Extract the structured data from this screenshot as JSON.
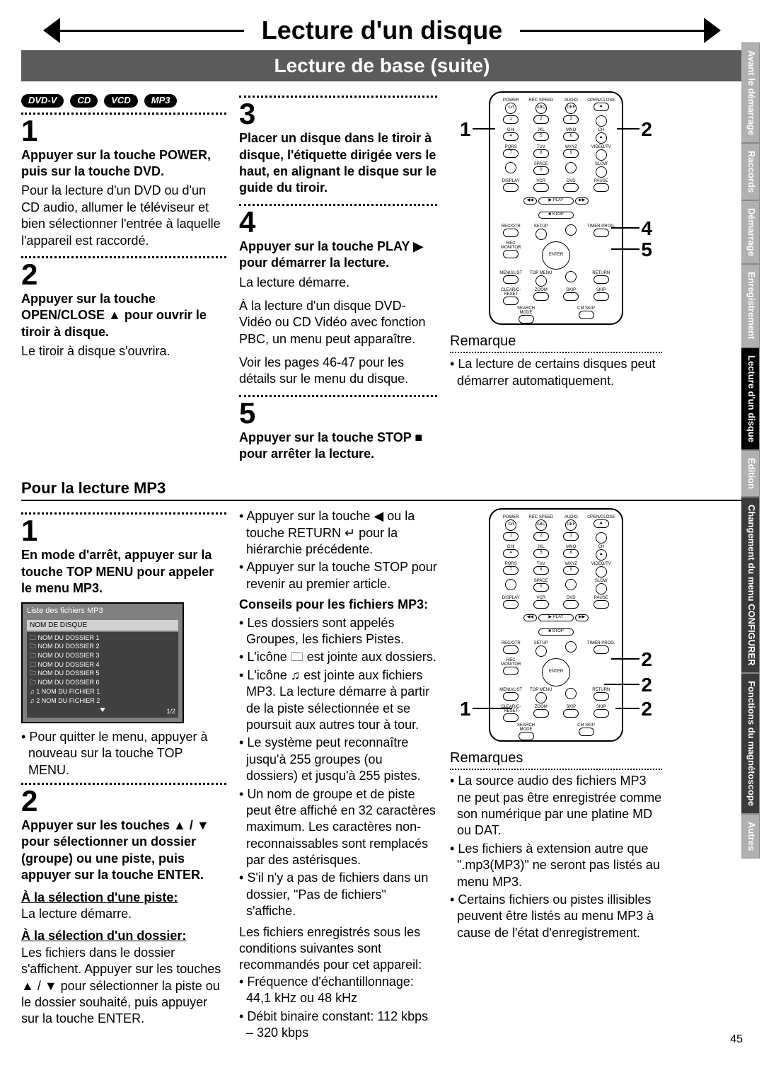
{
  "title": "Lecture d'un disque",
  "subtitle": "Lecture de base (suite)",
  "badges": [
    "DVD-V",
    "CD",
    "VCD",
    "MP3"
  ],
  "top": {
    "s1_head": "Appuyer sur la touche POWER, puis sur la touche DVD.",
    "s1_body": "Pour la lecture d'un DVD ou d'un CD audio, allumer le téléviseur et bien sélectionner l'entrée à laquelle l'appareil est raccordé.",
    "s2_head": "Appuyer sur la touche OPEN/CLOSE ▲ pour ouvrir le tiroir à disque.",
    "s2_body": "Le tiroir à disque s'ouvrira.",
    "s3_head": "Placer un disque dans le tiroir à disque, l'étiquette dirigée vers le haut, en alignant le disque sur le guide du tiroir.",
    "s4_head": "Appuyer sur la touche PLAY ▶ pour démarrer la lecture.",
    "s4_body1": "La lecture démarre.",
    "s4_body2": "À la lecture d'un disque DVD-Vidéo ou CD Vidéo avec fonction PBC, un menu peut apparaître.",
    "s4_body3": "Voir les pages 46-47 pour les détails sur le menu du disque.",
    "s5_head": "Appuyer sur la touche STOP ■ pour arrêter la lecture.",
    "remarque_label": "Remarque",
    "remarque1": "La lecture de certains disques peut démarrer automatique­ment."
  },
  "mp3_heading": "Pour la lecture MP3",
  "mp3": {
    "s1_head": "En mode d'arrêt, appuyer sur la touche TOP MENU pour appeler le menu MP3.",
    "menu_title": "Liste des fichiers MP3",
    "disc_name": "NOM DE DISQUE",
    "folders": [
      "NOM DU DOSSIER 1",
      "NOM DU DOSSIER 2",
      "NOM DU DOSSIER 3",
      "NOM DU DOSSIER 4",
      "NOM DU DOSSIER 5",
      "NOM DU DOSSIER 6"
    ],
    "files": [
      "1   NOM DU FICHIER 1",
      "2   NOM DU FICHIER 2"
    ],
    "page": "1/2",
    "s1_after": "Pour quitter le menu, appuyer à nouveau sur la touche TOP MENU.",
    "s2_head": "Appuyer sur les touches ▲ / ▼ pour sélectionner un dossier (groupe) ou une piste, puis appuyer sur la touche ENTER.",
    "sel_piste_label": "À la sélection d'une piste:",
    "sel_piste_body": "La lecture démarre.",
    "sel_dossier_label": "À la sélection d'un dossier:",
    "sel_dossier_body": "Les fichiers dans le dossier s'affichent. Appuyer sur les touches ▲ / ▼ pour sélectionner la piste ou le dossier souhaité, puis appuyer sur la touche ENTER.",
    "col2_a": "Appuyer sur la touche ◀ ou la touche RETURN ↵ pour la hiérarchie précédente.",
    "col2_b": "Appuyer sur la touche STOP pour revenir au premier article.",
    "tips_head": "Conseils pour les fichiers MP3:",
    "tip1": "Les dossiers sont appelés Groupes, les fichiers Pistes.",
    "tip2a": "L'icône ",
    "tip2b": " est jointe aux dossiers.",
    "tip3a": "L'icône ",
    "tip3b": " est jointe aux fichiers MP3. La lecture démarre à partir de la piste sélectionnée et se poursuit aux autres tour à tour.",
    "tip4": "Le système peut reconnaître jusqu'à 255 groupes (ou dossiers) et jusqu'à 255 pistes.",
    "tip5": "Un nom de groupe et de piste peut être affiché en 32 caractères maximum. Les caractères non-reconnaissables sont remplacés par des astérisques.",
    "tip6": "S'il n'y a pas de fichiers dans un dossier, \"Pas de fichiers\" s'affiche.",
    "rec_intro": "Les fichiers enregistrés sous les conditions suivantes sont recommandés pour cet appareil:",
    "rec1": "Fréquence d'échantillonnage: 44,1 kHz ou 48 kHz",
    "rec2": "Débit binaire constant: 112 kbps – 320 kbps",
    "remarques_label": "Remarques",
    "r1": "La source audio des fichiers MP3 ne peut pas être enregistrée comme son numérique par une platine MD ou DAT.",
    "r2": "Les fichiers à extension autre que \".mp3(MP3)\" ne seront pas listés au menu MP3.",
    "r3": "Certains fichiers ou pistes illisibles peuvent être listés au menu MP3 à cause de l'état d'enregistrement."
  },
  "remote_labels": {
    "row1": [
      "POWER",
      "REC SPEED",
      "AUDIO",
      "OPEN/CLOSE"
    ],
    "row2": [
      "⏻/I",
      "ABC",
      "DEF",
      "▲"
    ],
    "row2n": [
      "1",
      "2",
      "3"
    ],
    "row3l": [
      "GHI",
      "JKL",
      "MNO",
      "CH"
    ],
    "row3n": [
      "4",
      "5",
      "6",
      "▲"
    ],
    "row4l": [
      "PQRS",
      "TUV",
      "WXYZ",
      "VIDEO/TV"
    ],
    "row4n": [
      "7",
      "8",
      "9",
      ""
    ],
    "row5l": [
      "",
      "SPACE",
      "",
      "SLOW"
    ],
    "row5n": [
      "",
      "0",
      "",
      ""
    ],
    "row6l": [
      "DISPLAY",
      "VCR",
      "DVD",
      "PAUSE"
    ],
    "play": "PLAY",
    "stop": "STOP",
    "row7": [
      "REC/OTR",
      "SETUP",
      "",
      "TIMER PROG."
    ],
    "row8": [
      "REC MONITOR",
      "",
      "ENTER",
      ""
    ],
    "row9": [
      "MENU/LIST",
      "TOP MENU",
      "",
      "RETURN"
    ],
    "row10": [
      "CLEAR/C-RESET",
      "ZOOM",
      "SKIP",
      "SKIP"
    ],
    "row11": [
      "SEARCH MODE",
      "CM SKIP",
      "",
      ""
    ]
  },
  "side_tabs": [
    "Avant le démarrage",
    "Raccords",
    "Démarrage",
    "Enregistrement",
    "Lecture d'un disque",
    "Édition",
    "Changement du menu CONFIGURER",
    "Fonctions du magnétoscope",
    "Autres"
  ],
  "page_number": "45",
  "colors": {
    "grey_tab": "#b0b0b0",
    "dark_tab": "#3a3a3a",
    "black": "#000000",
    "subtitle_bg": "#5b5b5b"
  }
}
